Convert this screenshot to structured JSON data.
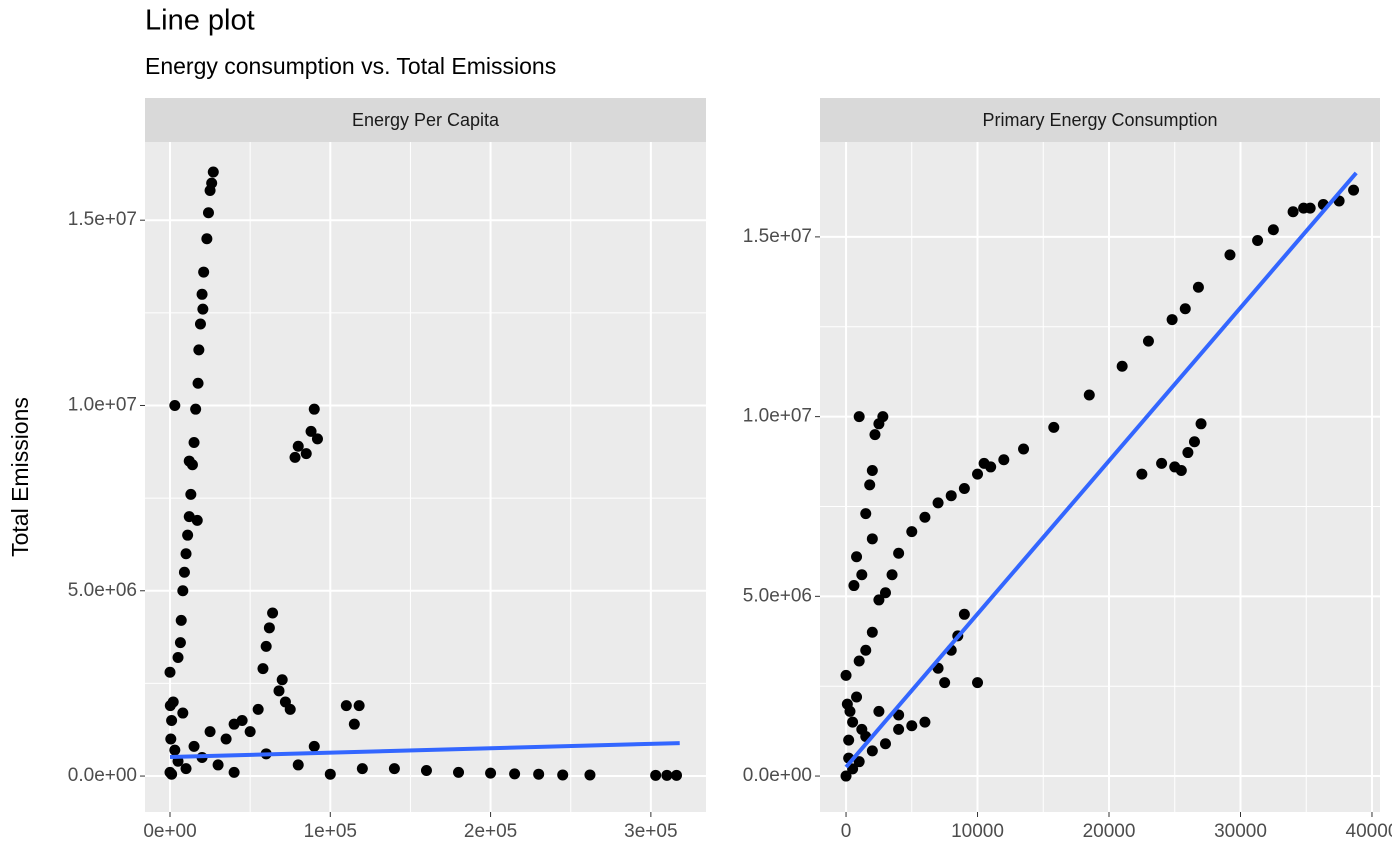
{
  "title": "Line plot",
  "subtitle": "Energy consumption vs. Total Emissions",
  "y_label": "Total Emissions",
  "chart_data": [
    {
      "type": "scatter",
      "facet": "Energy Per Capita",
      "xlim": [
        -15600,
        334400
      ],
      "ylim": [
        -970000,
        17110000
      ],
      "grid": true,
      "xticks": [
        {
          "value": 0,
          "label": "0e+00"
        },
        {
          "value": 100000,
          "label": "1e+05"
        },
        {
          "value": 200000,
          "label": "2e+05"
        },
        {
          "value": 300000,
          "label": "3e+05"
        }
      ],
      "yticks": [
        {
          "value": 0,
          "label": "0.0e+00"
        },
        {
          "value": 5000000,
          "label": "5.0e+06"
        },
        {
          "value": 10000000,
          "label": "1.0e+07"
        },
        {
          "value": 15000000,
          "label": "1.5e+07"
        }
      ],
      "points": {
        "color": "#000000",
        "x": [
          27000,
          26000,
          25000,
          24000,
          23000,
          21000,
          20000,
          20500,
          19000,
          18000,
          17500,
          16000,
          15000,
          14000,
          13000,
          12000,
          11000,
          10000,
          9000,
          8000,
          3000,
          7000,
          6500,
          5000,
          0,
          17000,
          12000,
          80000,
          85000,
          88000,
          90000,
          92000,
          78000,
          60000,
          58000,
          62000,
          64000,
          70000,
          68000,
          72000,
          75000,
          110000,
          115000,
          118000,
          55000,
          45000,
          40000,
          35000,
          50000,
          2000,
          1000,
          500,
          3000,
          5000,
          10000,
          20000,
          30000,
          60000,
          90000,
          120000,
          140000,
          160000,
          180000,
          200000,
          215000,
          230000,
          245000,
          262000,
          303000,
          310000,
          316000,
          100000,
          80000,
          40000,
          0,
          1000,
          15000,
          25000,
          8000,
          200
        ],
        "y": [
          16300000,
          16000000,
          15800000,
          15200000,
          14500000,
          13600000,
          13000000,
          12600000,
          12200000,
          11500000,
          10600000,
          9900000,
          9000000,
          8400000,
          7600000,
          7000000,
          6500000,
          6000000,
          5500000,
          5000000,
          10000000,
          4200000,
          3600000,
          3200000,
          2800000,
          6900000,
          8500000,
          8900000,
          8700000,
          9300000,
          9900000,
          9100000,
          8600000,
          3500000,
          2900000,
          4000000,
          4400000,
          2600000,
          2300000,
          2000000,
          1800000,
          1900000,
          1400000,
          1900000,
          1800000,
          1500000,
          1400000,
          1000000,
          1200000,
          2000000,
          1500000,
          1000000,
          700000,
          400000,
          200000,
          500000,
          300000,
          600000,
          800000,
          200000,
          200000,
          150000,
          100000,
          80000,
          60000,
          50000,
          30000,
          30000,
          20000,
          20000,
          20000,
          50000,
          300000,
          100000,
          100000,
          50000,
          800000,
          1200000,
          1700000,
          1900000
        ]
      },
      "fit": {
        "color": "#3366ff",
        "x": [
          0,
          318000
        ],
        "y": [
          513000,
          890000
        ]
      }
    },
    {
      "type": "scatter",
      "facet": "Primary Energy Consumption",
      "xlim": [
        -1980,
        40610
      ],
      "ylim": [
        -1000000,
        17640000
      ],
      "grid": true,
      "xticks": [
        0,
        10000,
        20000,
        30000,
        40000
      ],
      "yticks": [
        {
          "value": 0,
          "label": "0.0e+00"
        },
        {
          "value": 5000000,
          "label": "5.0e+06"
        },
        {
          "value": 10000000,
          "label": "1.0e+07"
        },
        {
          "value": 15000000,
          "label": "1.5e+07"
        }
      ],
      "points": {
        "color": "#000000",
        "x": [
          38600,
          37500,
          36300,
          35300,
          34800,
          34000,
          32500,
          31300,
          29200,
          26800,
          25800,
          24800,
          23000,
          21000,
          18500,
          15800,
          13500,
          12000,
          11000,
          10500,
          10000,
          9000,
          8000,
          7000,
          6000,
          5000,
          4000,
          3500,
          3000,
          2500,
          2000,
          1500,
          1000,
          2800,
          2500,
          2200,
          2000,
          1800,
          1000,
          1500,
          800,
          600,
          1200,
          2000,
          25000,
          26000,
          27000,
          26500,
          22500,
          24000,
          25500,
          7000,
          7500,
          8000,
          8500,
          10000,
          9000,
          5000,
          6000,
          4000,
          3000,
          2000,
          1000,
          500,
          200,
          100,
          0,
          500,
          1500,
          2500,
          800,
          0,
          200,
          300,
          1200,
          4000
        ],
        "y": [
          16300000,
          16000000,
          15900000,
          15800000,
          15800000,
          15700000,
          15200000,
          14900000,
          14500000,
          13600000,
          13000000,
          12700000,
          12100000,
          11400000,
          10600000,
          9700000,
          9100000,
          8800000,
          8600000,
          8700000,
          8400000,
          8000000,
          7800000,
          7600000,
          7200000,
          6800000,
          6200000,
          5600000,
          5100000,
          4900000,
          4000000,
          3500000,
          3200000,
          10000000,
          9800000,
          9500000,
          8500000,
          8100000,
          10000000,
          7300000,
          6100000,
          5300000,
          5600000,
          6600000,
          8600000,
          9000000,
          9800000,
          9300000,
          8400000,
          8700000,
          8500000,
          3000000,
          2600000,
          3500000,
          3900000,
          2600000,
          4500000,
          1400000,
          1500000,
          1300000,
          900000,
          700000,
          400000,
          200000,
          1000000,
          2000000,
          2800000,
          1500000,
          1100000,
          1800000,
          2200000,
          0,
          500000,
          1800000,
          1300000,
          1700000
        ]
      },
      "fit": {
        "color": "#3366ff",
        "x": [
          0,
          38800
        ],
        "y": [
          250000,
          16780000
        ]
      }
    }
  ]
}
